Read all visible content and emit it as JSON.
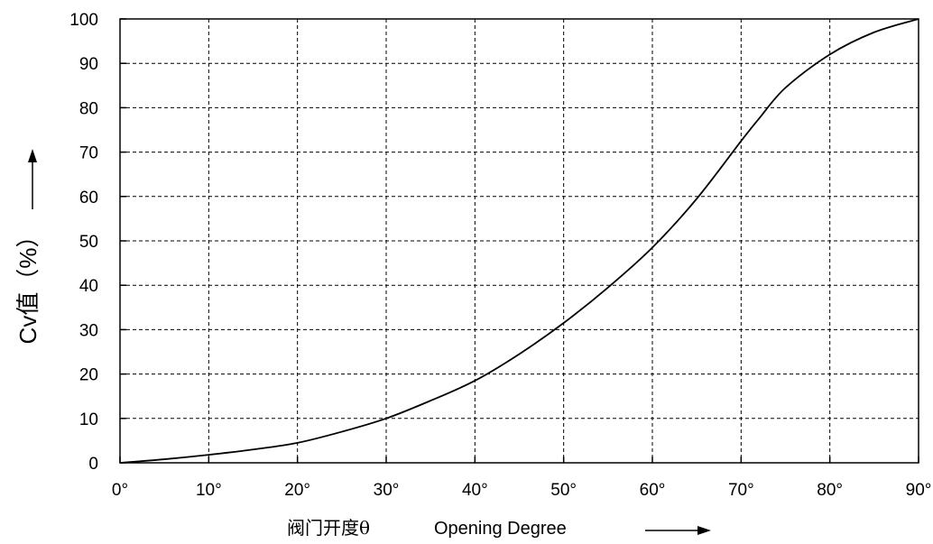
{
  "chart_data": {
    "type": "line",
    "title": "",
    "xlabel_cn": "阀门开度θ",
    "xlabel_en": "Opening Degree",
    "ylabel": "Cv值（%）",
    "xlim": [
      0,
      90
    ],
    "ylim": [
      0,
      100
    ],
    "x_ticks": [
      0,
      10,
      20,
      30,
      40,
      50,
      60,
      70,
      80,
      90
    ],
    "x_tick_labels": [
      "0°",
      "10°",
      "20°",
      "30°",
      "40°",
      "50°",
      "60°",
      "70°",
      "80°",
      "90°"
    ],
    "y_ticks": [
      0,
      10,
      20,
      30,
      40,
      50,
      60,
      70,
      80,
      90,
      100
    ],
    "y_tick_labels": [
      "0",
      "10",
      "20",
      "30",
      "40",
      "50",
      "60",
      "70",
      "80",
      "90",
      "100"
    ],
    "grid": true,
    "series": [
      {
        "x": [
          0,
          5,
          10,
          15,
          20,
          25,
          30,
          35,
          40,
          45,
          50,
          55,
          60,
          65,
          70,
          72,
          75,
          80,
          85,
          90
        ],
        "y": [
          0,
          0.8,
          1.8,
          3.0,
          4.5,
          7.0,
          10.0,
          14.0,
          18.5,
          24.5,
          31.5,
          39.5,
          48.5,
          59.5,
          72.5,
          77.5,
          84.5,
          92.0,
          97.0,
          100
        ]
      }
    ]
  }
}
